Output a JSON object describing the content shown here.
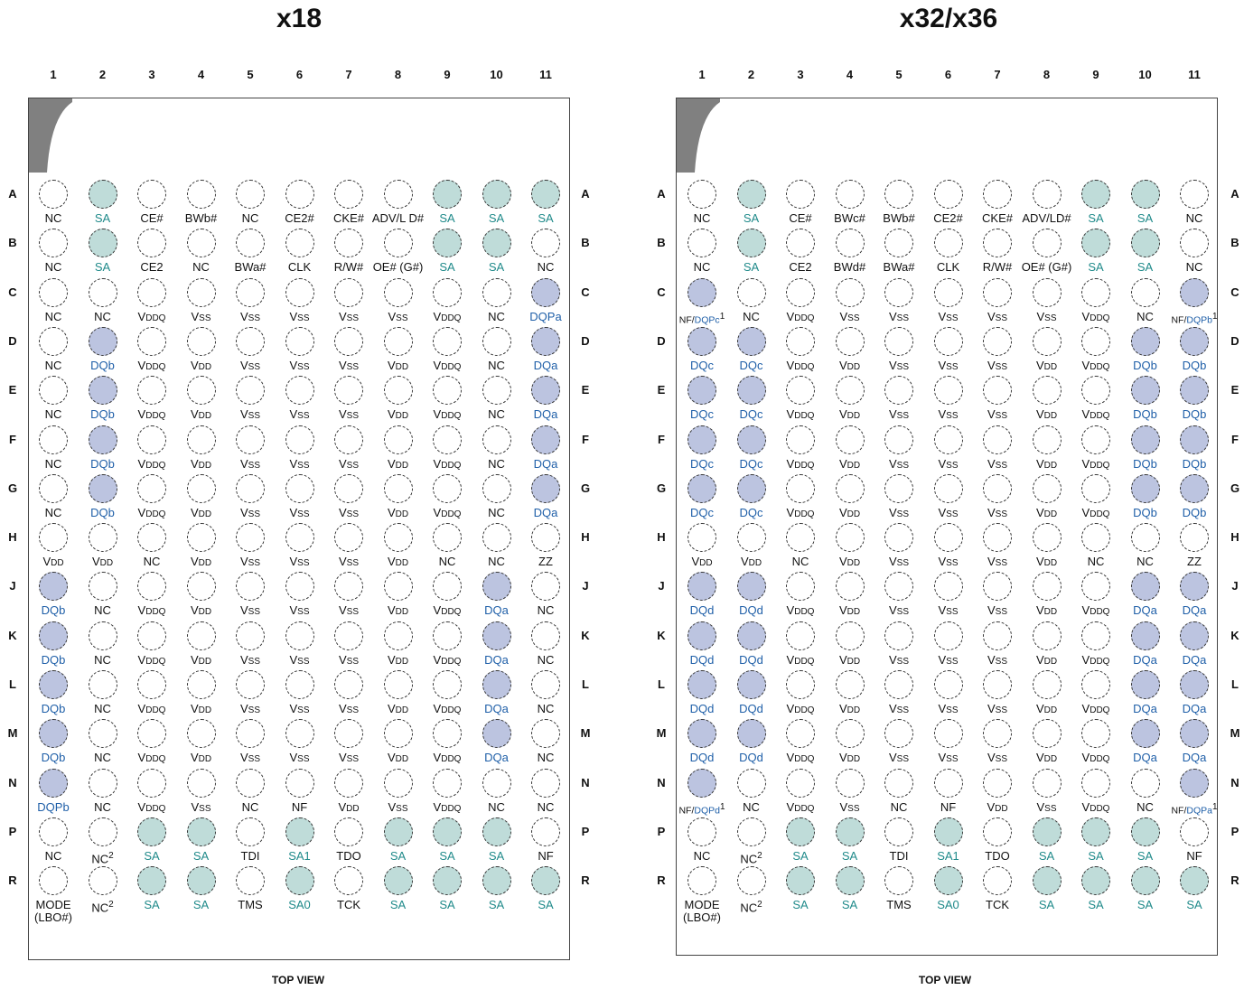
{
  "diagrams": [
    {
      "title": "x18",
      "footer": "TOP VIEW",
      "columns": [
        "1",
        "2",
        "3",
        "4",
        "5",
        "6",
        "7",
        "8",
        "9",
        "10",
        "11"
      ],
      "rows": [
        "A",
        "B",
        "C",
        "D",
        "E",
        "F",
        "G",
        "H",
        "J",
        "K",
        "L",
        "M",
        "N",
        "P",
        "R"
      ],
      "pins": [
        [
          "NC",
          "SA",
          "CE#",
          "BWb#",
          "NC",
          "CE2#",
          "CKE#",
          "ADV/L D#",
          "SA",
          "SA",
          "SA"
        ],
        [
          "NC",
          "SA",
          "CE2",
          "NC",
          "BWa#",
          "CLK",
          "R/W#",
          "OE# (G#)",
          "SA",
          "SA",
          "NC"
        ],
        [
          "NC",
          "NC",
          "VDDQ",
          "VSS",
          "VSS",
          "VSS",
          "VSS",
          "VSS",
          "VDDQ",
          "NC",
          "DQPa"
        ],
        [
          "NC",
          "DQb",
          "VDDQ",
          "VDD",
          "VSS",
          "VSS",
          "VSS",
          "VDD",
          "VDDQ",
          "NC",
          "DQa"
        ],
        [
          "NC",
          "DQb",
          "VDDQ",
          "VDD",
          "VSS",
          "VSS",
          "VSS",
          "VDD",
          "VDDQ",
          "NC",
          "DQa"
        ],
        [
          "NC",
          "DQb",
          "VDDQ",
          "VDD",
          "VSS",
          "VSS",
          "VSS",
          "VDD",
          "VDDQ",
          "NC",
          "DQa"
        ],
        [
          "NC",
          "DQb",
          "VDDQ",
          "VDD",
          "VSS",
          "VSS",
          "VSS",
          "VDD",
          "VDDQ",
          "NC",
          "DQa"
        ],
        [
          "VDD",
          "VDD",
          "NC",
          "VDD",
          "VSS",
          "VSS",
          "VSS",
          "VDD",
          "NC",
          "NC",
          "ZZ"
        ],
        [
          "DQb",
          "NC",
          "VDDQ",
          "VDD",
          "VSS",
          "VSS",
          "VSS",
          "VDD",
          "VDDQ",
          "DQa",
          "NC"
        ],
        [
          "DQb",
          "NC",
          "VDDQ",
          "VDD",
          "VSS",
          "VSS",
          "VSS",
          "VDD",
          "VDDQ",
          "DQa",
          "NC"
        ],
        [
          "DQb",
          "NC",
          "VDDQ",
          "VDD",
          "VSS",
          "VSS",
          "VSS",
          "VDD",
          "VDDQ",
          "DQa",
          "NC"
        ],
        [
          "DQb",
          "NC",
          "VDDQ",
          "VDD",
          "VSS",
          "VSS",
          "VSS",
          "VDD",
          "VDDQ",
          "DQa",
          "NC"
        ],
        [
          "DQPb",
          "NC",
          "VDDQ",
          "VSS",
          "NC",
          "NF",
          "VDD",
          "VSS",
          "VDDQ",
          "NC",
          "NC"
        ],
        [
          "NC",
          "NC2",
          "SA",
          "SA",
          "TDI",
          "SA1",
          "TDO",
          "SA",
          "SA",
          "SA",
          "NF"
        ],
        [
          "MODE (LBO#)",
          "NC2",
          "SA",
          "SA",
          "TMS",
          "SA0",
          "TCK",
          "SA",
          "SA",
          "SA",
          "SA"
        ]
      ]
    },
    {
      "title": "x32/x36",
      "footer": "TOP VIEW",
      "columns": [
        "1",
        "2",
        "3",
        "4",
        "5",
        "6",
        "7",
        "8",
        "9",
        "10",
        "11"
      ],
      "rows": [
        "A",
        "B",
        "C",
        "D",
        "E",
        "F",
        "G",
        "H",
        "J",
        "K",
        "L",
        "M",
        "N",
        "P",
        "R"
      ],
      "pins": [
        [
          "NC",
          "SA",
          "CE#",
          "BWc#",
          "BWb#",
          "CE2#",
          "CKE#",
          "ADV/LD#",
          "SA",
          "SA",
          "NC"
        ],
        [
          "NC",
          "SA",
          "CE2",
          "BWd#",
          "BWa#",
          "CLK",
          "R/W#",
          "OE# (G#)",
          "SA",
          "SA",
          "NC"
        ],
        [
          "NF/DQPc1",
          "NC",
          "VDDQ",
          "VSS",
          "VSS",
          "VSS",
          "VSS",
          "VSS",
          "VDDQ",
          "NC",
          "NF/DQPb1"
        ],
        [
          "DQc",
          "DQc",
          "VDDQ",
          "VDD",
          "VSS",
          "VSS",
          "VSS",
          "VDD",
          "VDDQ",
          "DQb",
          "DQb"
        ],
        [
          "DQc",
          "DQc",
          "VDDQ",
          "VDD",
          "VSS",
          "VSS",
          "VSS",
          "VDD",
          "VDDQ",
          "DQb",
          "DQb"
        ],
        [
          "DQc",
          "DQc",
          "VDDQ",
          "VDD",
          "VSS",
          "VSS",
          "VSS",
          "VDD",
          "VDDQ",
          "DQb",
          "DQb"
        ],
        [
          "DQc",
          "DQc",
          "VDDQ",
          "VDD",
          "VSS",
          "VSS",
          "VSS",
          "VDD",
          "VDDQ",
          "DQb",
          "DQb"
        ],
        [
          "VDD",
          "VDD",
          "NC",
          "VDD",
          "VSS",
          "VSS",
          "VSS",
          "VDD",
          "NC",
          "NC",
          "ZZ"
        ],
        [
          "DQd",
          "DQd",
          "VDDQ",
          "VDD",
          "VSS",
          "VSS",
          "VSS",
          "VDD",
          "VDDQ",
          "DQa",
          "DQa"
        ],
        [
          "DQd",
          "DQd",
          "VDDQ",
          "VDD",
          "VSS",
          "VSS",
          "VSS",
          "VDD",
          "VDDQ",
          "DQa",
          "DQa"
        ],
        [
          "DQd",
          "DQd",
          "VDDQ",
          "VDD",
          "VSS",
          "VSS",
          "VSS",
          "VDD",
          "VDDQ",
          "DQa",
          "DQa"
        ],
        [
          "DQd",
          "DQd",
          "VDDQ",
          "VDD",
          "VSS",
          "VSS",
          "VSS",
          "VDD",
          "VDDQ",
          "DQa",
          "DQa"
        ],
        [
          "NF/DQPd1",
          "NC",
          "VDDQ",
          "VSS",
          "NC",
          "NF",
          "VDD",
          "VSS",
          "VDDQ",
          "NC",
          "NF/DQPa1"
        ],
        [
          "NC",
          "NC2",
          "SA",
          "SA",
          "TDI",
          "SA1",
          "TDO",
          "SA",
          "SA",
          "SA",
          "NF"
        ],
        [
          "MODE (LBO#)",
          "NC2",
          "SA",
          "SA",
          "TMS",
          "SA0",
          "TCK",
          "SA",
          "SA",
          "SA",
          "SA"
        ]
      ]
    }
  ],
  "colors": {
    "address_fill": "#bfdcd9",
    "data_fill": "#bcc4e0",
    "address_text": "#1f8a8a",
    "data_text": "#1f5fa8",
    "corner": "#808080"
  }
}
